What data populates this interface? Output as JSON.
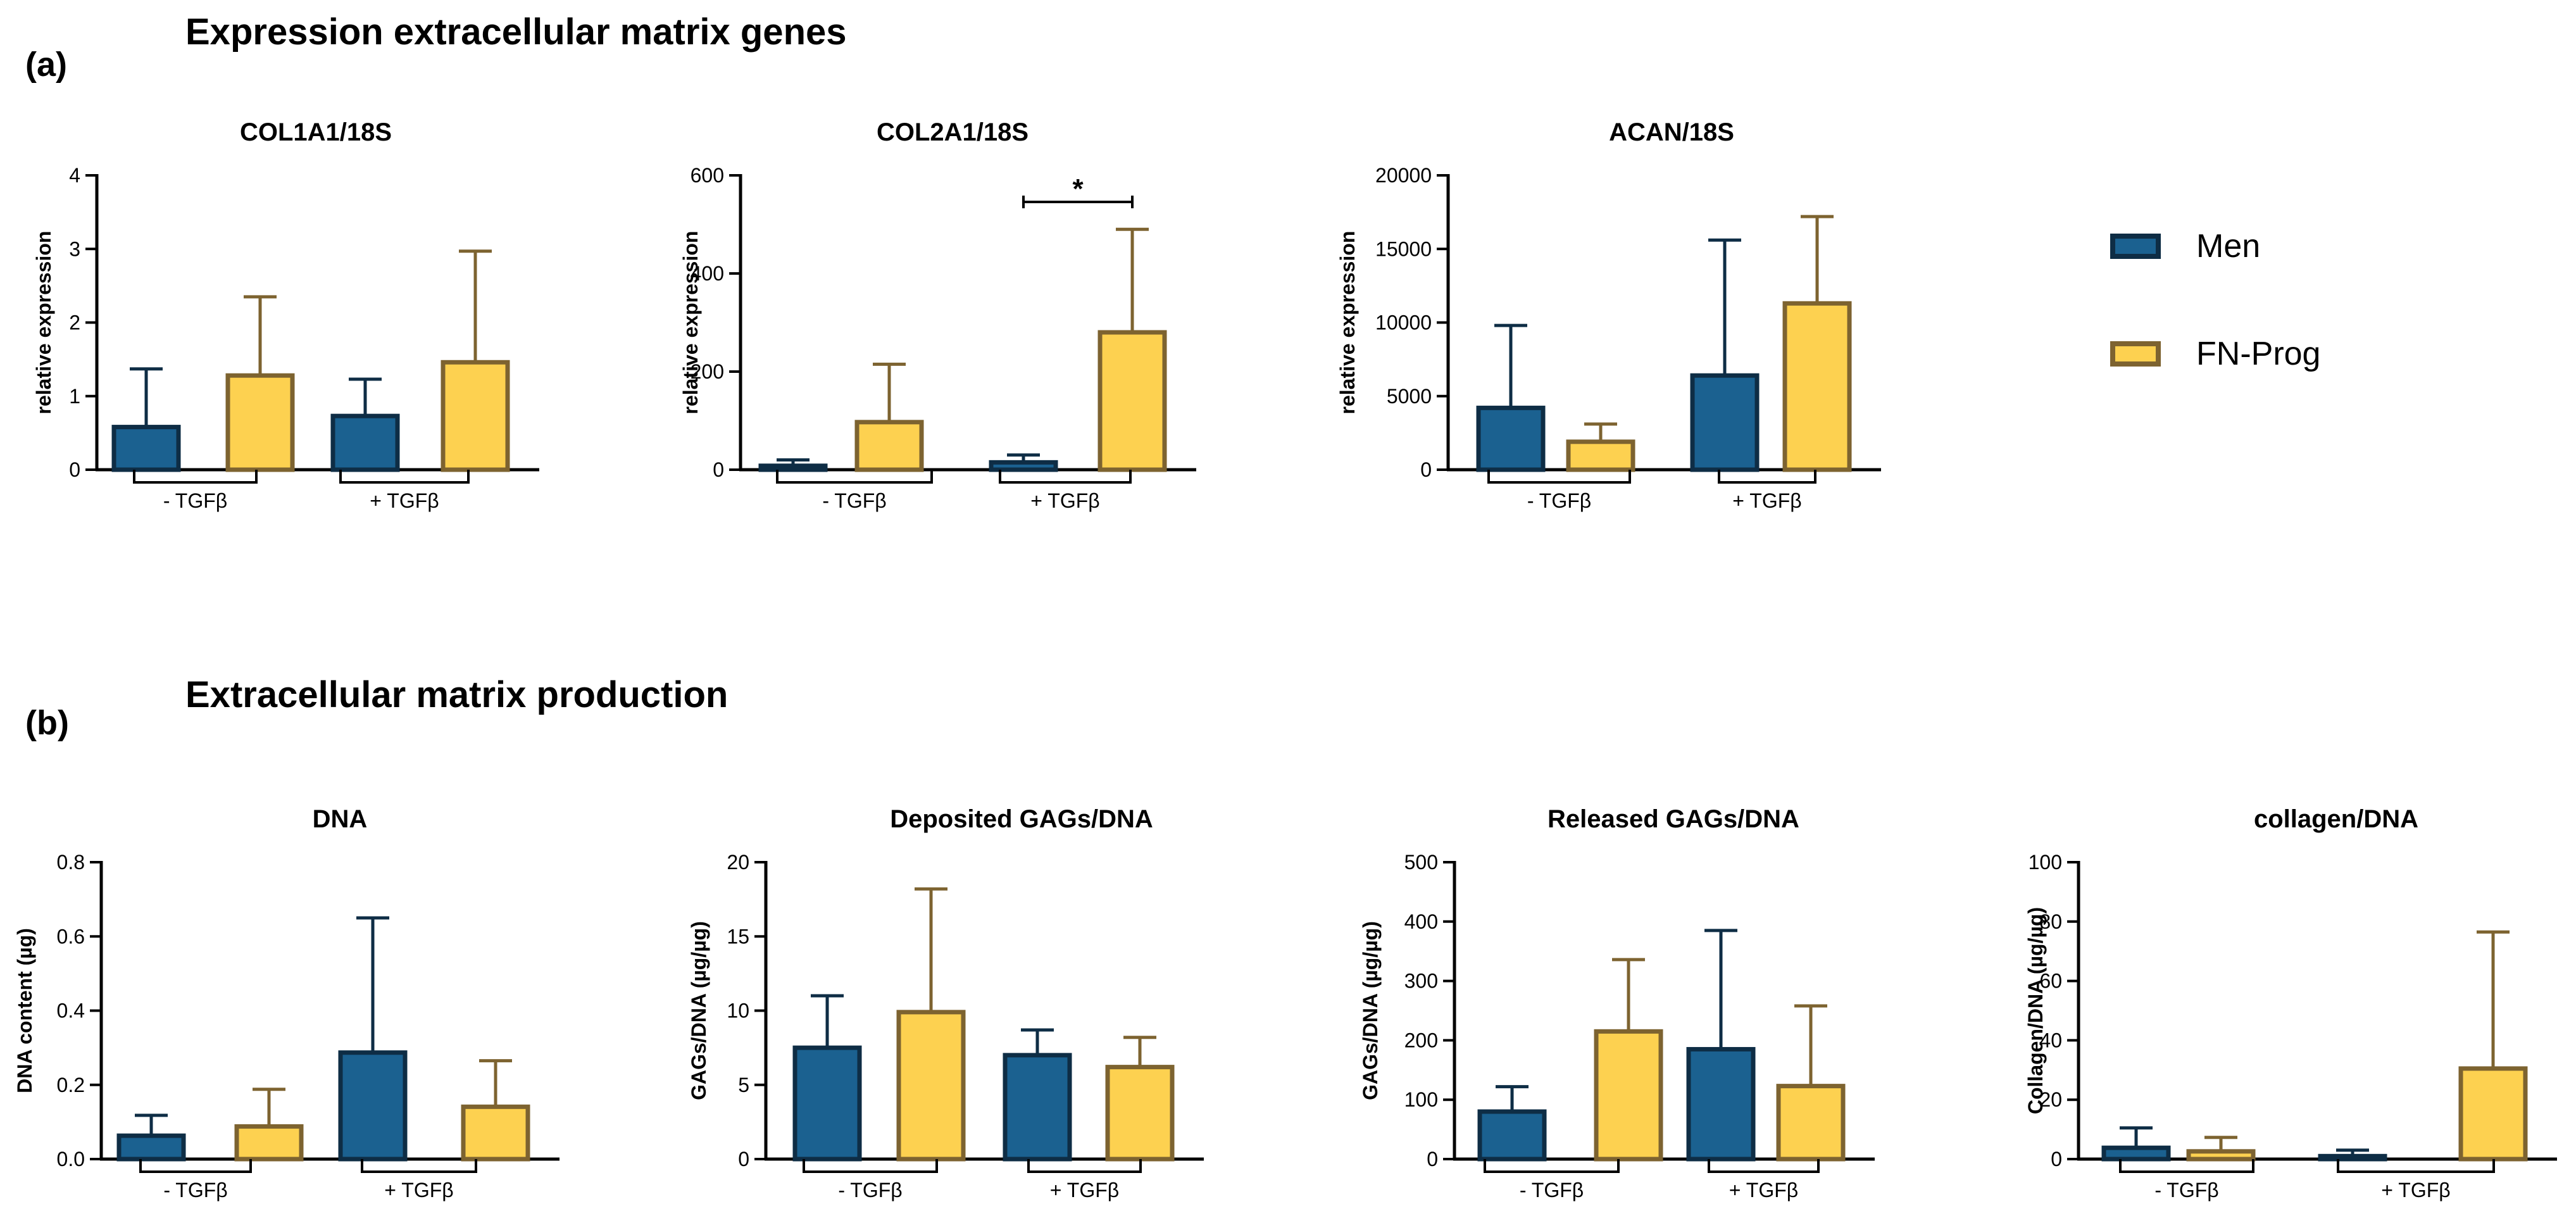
{
  "panel_a": {
    "label": "(a)",
    "title": "Expression extracellular matrix genes"
  },
  "panel_b": {
    "label": "(b)",
    "title": "Extracellular matrix production"
  },
  "legend": {
    "entries": [
      "Men",
      "FN-Prog"
    ]
  },
  "colors": {
    "men_fill": "#1b6190",
    "men_edge": "#0e2d45",
    "fnprog_fill": "#fdd150",
    "fnprog_edge": "#7d6330"
  },
  "chart_data": [
    {
      "type": "bar",
      "title": "COL1A1/18S",
      "ylabel": "relative expression",
      "ylim": [
        0,
        4
      ],
      "yticks": [
        "0",
        "1",
        "2",
        "3",
        "4"
      ],
      "categories": [
        "- TGFβ",
        "+ TGFβ"
      ],
      "series": [
        {
          "name": "Men",
          "values": [
            0.58,
            0.73
          ],
          "error": [
            0.79,
            0.5
          ]
        },
        {
          "name": "FN-Prog",
          "values": [
            1.28,
            1.46
          ],
          "error": [
            1.07,
            1.51
          ]
        }
      ]
    },
    {
      "type": "bar",
      "title": "COL2A1/18S",
      "ylabel": "relative expression",
      "ylim": [
        0,
        600
      ],
      "yticks": [
        "0",
        "200",
        "400",
        "600"
      ],
      "categories": [
        "- TGFβ",
        "+ TGFβ"
      ],
      "series": [
        {
          "name": "Men",
          "values": [
            8,
            15
          ],
          "error": [
            12,
            15
          ]
        },
        {
          "name": "FN-Prog",
          "values": [
            97,
            280
          ],
          "error": [
            118,
            210
          ]
        }
      ],
      "annotation": "*"
    },
    {
      "type": "bar",
      "title": "ACAN/18S",
      "ylabel": "relative expression",
      "ylim": [
        0,
        20000
      ],
      "yticks": [
        "0",
        "5000",
        "10000",
        "15000",
        "20000"
      ],
      "categories": [
        "- TGFβ",
        "+ TGFβ"
      ],
      "series": [
        {
          "name": "Men",
          "values": [
            4200,
            6400
          ],
          "error": [
            5600,
            9200
          ]
        },
        {
          "name": "FN-Prog",
          "values": [
            1900,
            11300
          ],
          "error": [
            1200,
            5900
          ]
        }
      ]
    },
    {
      "type": "bar",
      "title": "DNA",
      "ylabel": "DNA content  (µg)",
      "ylim": [
        0,
        0.8
      ],
      "yticks": [
        "0.0",
        "0.2",
        "0.4",
        "0.6",
        "0.8"
      ],
      "categories": [
        "- TGFβ",
        "+ TGFβ"
      ],
      "series": [
        {
          "name": "Men",
          "values": [
            0.063,
            0.287
          ],
          "error": [
            0.055,
            0.363
          ]
        },
        {
          "name": "FN-Prog",
          "values": [
            0.088,
            0.141
          ],
          "error": [
            0.1,
            0.124
          ]
        }
      ]
    },
    {
      "type": "bar",
      "title": "Deposited GAGs/DNA",
      "ylabel": "GAGs/DNA  (µg/µg)",
      "ylim": [
        0,
        20
      ],
      "yticks": [
        "0",
        "5",
        "10",
        "15",
        "20"
      ],
      "categories": [
        "- TGFβ",
        "+ TGFβ"
      ],
      "series": [
        {
          "name": "Men",
          "values": [
            7.5,
            7.0
          ],
          "error": [
            3.5,
            1.7
          ]
        },
        {
          "name": "FN-Prog",
          "values": [
            9.9,
            6.2
          ],
          "error": [
            8.3,
            2.0
          ]
        }
      ]
    },
    {
      "type": "bar",
      "title": "Released GAGs/DNA",
      "ylabel": "GAGs/DNA (µg/µg)",
      "ylim": [
        0,
        500
      ],
      "yticks": [
        "0",
        "100",
        "200",
        "300",
        "400",
        "500"
      ],
      "categories": [
        "- TGFβ",
        "+ TGFβ"
      ],
      "series": [
        {
          "name": "Men",
          "values": [
            80,
            185
          ],
          "error": [
            42,
            200
          ]
        },
        {
          "name": "FN-Prog",
          "values": [
            215,
            123
          ],
          "error": [
            121,
            135
          ]
        }
      ]
    },
    {
      "type": "bar",
      "title": "collagen/DNA",
      "ylabel": "Collagen/DNA (µg/µg)",
      "ylim": [
        0,
        100
      ],
      "yticks": [
        "0",
        "20",
        "40",
        "60",
        "80",
        "100"
      ],
      "categories": [
        "- TGFβ",
        "+ TGFβ"
      ],
      "series": [
        {
          "name": "Men",
          "values": [
            3.8,
            1.0
          ],
          "error": [
            6.7,
            2.0
          ]
        },
        {
          "name": "FN-Prog",
          "values": [
            2.6,
            30.5
          ],
          "error": [
            4.7,
            46.0
          ]
        }
      ]
    }
  ]
}
